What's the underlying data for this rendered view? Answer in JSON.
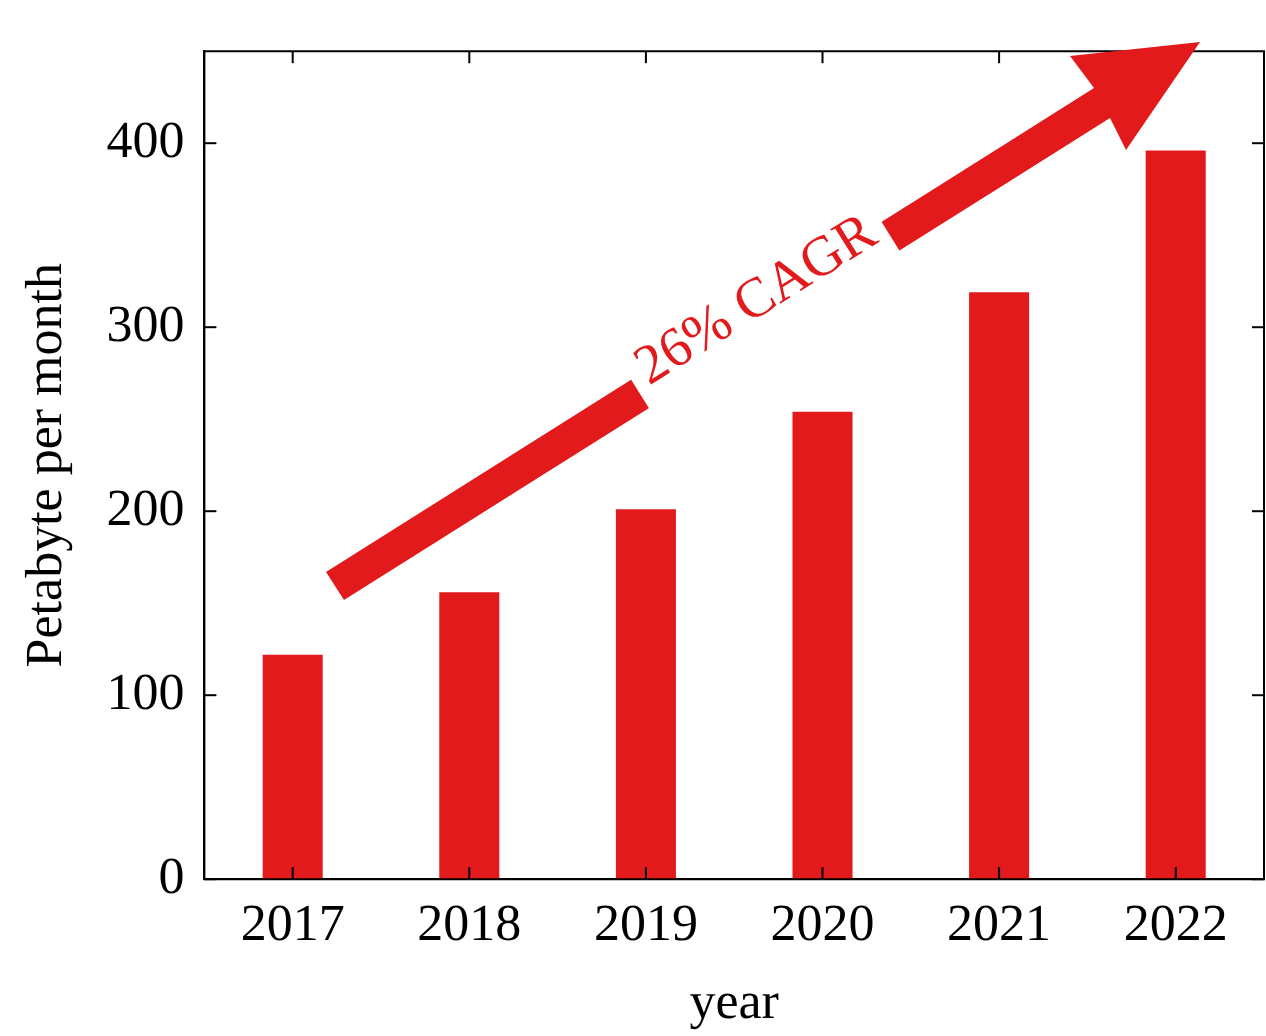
{
  "chart_data": {
    "type": "bar",
    "xlabel": "year",
    "ylabel": "Petabyte per month",
    "categories": [
      "2017",
      "2018",
      "2019",
      "2020",
      "2021",
      "2022"
    ],
    "values": [
      122,
      156,
      201,
      254,
      319,
      396
    ],
    "color": "#e31a1c",
    "ylim": [
      0,
      450
    ],
    "yticks": [
      0,
      100,
      200,
      300,
      400
    ],
    "grid": false,
    "legend": false,
    "annotations": [
      "26% CAGR"
    ]
  }
}
